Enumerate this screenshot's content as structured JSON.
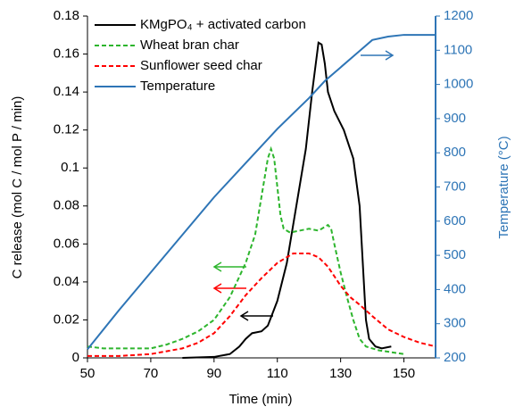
{
  "chart_data": {
    "type": "line",
    "x_label": "Time (min)",
    "y_label": "C release (mol C / mol P / min)",
    "y2_label": "Temperature (°C)",
    "xlim": [
      50,
      160
    ],
    "xticks": [
      50,
      70,
      90,
      110,
      130,
      150
    ],
    "ylim": [
      0,
      0.18
    ],
    "yticks": [
      0,
      0.02,
      0.04,
      0.06,
      0.08,
      0.1,
      0.12,
      0.14,
      0.16,
      0.18
    ],
    "y2lim": [
      200,
      1200
    ],
    "y2ticks": [
      200,
      300,
      400,
      500,
      600,
      700,
      800,
      900,
      1000,
      1100,
      1200
    ],
    "legend": "top-left",
    "series": [
      {
        "name": "KMgPO₄ + activated carbon",
        "color": "#000000",
        "dash": "solid",
        "x": [
          80,
          90,
          95,
          98,
          100,
          102,
          105,
          107,
          110,
          113,
          116,
          119,
          121,
          123,
          124,
          125,
          126,
          128,
          131,
          134,
          136,
          137,
          138,
          139,
          141,
          143,
          146
        ],
        "values": [
          0,
          0.0005,
          0.002,
          0.006,
          0.01,
          0.013,
          0.014,
          0.017,
          0.03,
          0.05,
          0.08,
          0.11,
          0.14,
          0.166,
          0.165,
          0.155,
          0.14,
          0.13,
          0.12,
          0.105,
          0.08,
          0.05,
          0.02,
          0.01,
          0.006,
          0.005,
          0.006
        ]
      },
      {
        "name": "Wheat bran char",
        "color": "#2db52d",
        "dash": "dashed",
        "x": [
          50,
          55,
          60,
          70,
          75,
          80,
          85,
          90,
          95,
          100,
          103,
          105,
          107,
          108,
          109,
          110,
          111,
          112,
          114,
          117,
          120,
          123,
          125,
          126,
          127,
          128,
          130,
          132,
          134,
          136,
          138,
          142,
          146,
          150
        ],
        "values": [
          0.006,
          0.005,
          0.005,
          0.005,
          0.007,
          0.01,
          0.014,
          0.02,
          0.032,
          0.05,
          0.065,
          0.085,
          0.105,
          0.11,
          0.105,
          0.09,
          0.075,
          0.068,
          0.066,
          0.067,
          0.068,
          0.067,
          0.069,
          0.07,
          0.068,
          0.06,
          0.045,
          0.032,
          0.02,
          0.01,
          0.006,
          0.004,
          0.003,
          0.002
        ]
      },
      {
        "name": "Sunflower seed char",
        "color": "#ff0000",
        "dash": "dashed",
        "x": [
          50,
          60,
          70,
          80,
          85,
          90,
          95,
          100,
          105,
          110,
          115,
          120,
          123,
          126,
          130,
          133,
          136,
          140,
          145,
          150,
          155,
          160
        ],
        "values": [
          0.001,
          0.001,
          0.002,
          0.005,
          0.008,
          0.013,
          0.022,
          0.033,
          0.042,
          0.05,
          0.055,
          0.055,
          0.053,
          0.048,
          0.038,
          0.032,
          0.028,
          0.022,
          0.015,
          0.011,
          0.008,
          0.006
        ]
      },
      {
        "name": "Temperature",
        "color": "#2e75b6",
        "dash": "solid",
        "axis": "y2",
        "x": [
          50,
          60,
          70,
          80,
          90,
          100,
          110,
          120,
          125,
          130,
          135,
          140,
          145,
          150,
          160
        ],
        "values": [
          225,
          340,
          450,
          560,
          670,
          770,
          870,
          960,
          1010,
          1050,
          1090,
          1130,
          1140,
          1145,
          1145
        ]
      }
    ]
  }
}
